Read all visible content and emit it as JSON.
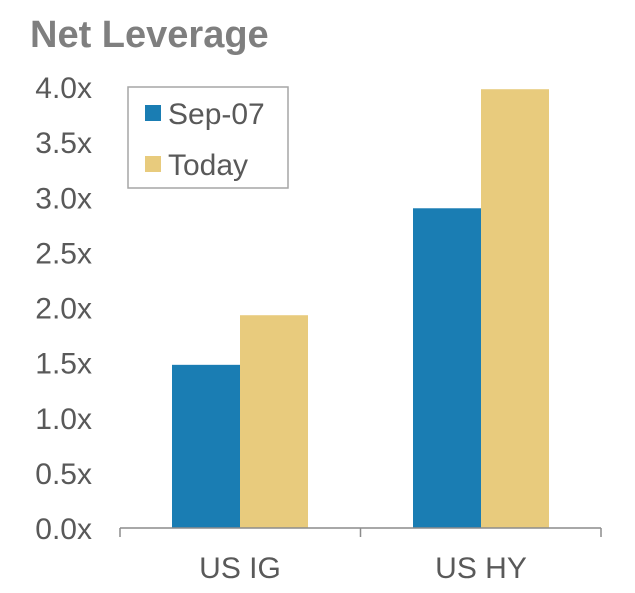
{
  "chart_data": {
    "type": "bar",
    "title": "Net Leverage",
    "categories": [
      "US IG",
      "US HY"
    ],
    "series": [
      {
        "name": "Sep-07",
        "values": [
          1.48,
          2.9
        ],
        "color": "#1a7db3"
      },
      {
        "name": "Today",
        "values": [
          1.93,
          3.98
        ],
        "color": "#e8cb7d"
      }
    ],
    "ylim": [
      0,
      4.0
    ],
    "yticks": [
      "0.0x",
      "0.5x",
      "1.0x",
      "1.5x",
      "2.0x",
      "2.5x",
      "3.0x",
      "3.5x",
      "4.0x"
    ],
    "ytick_values": [
      0,
      0.5,
      1.0,
      1.5,
      2.0,
      2.5,
      3.0,
      3.5,
      4.0
    ],
    "legend_position": "top-left",
    "grid": false
  },
  "colors": {
    "title": "#7f7f7f",
    "text": "#595959",
    "axis": "#8c8c8c",
    "legend_border": "#a6a6a6"
  }
}
